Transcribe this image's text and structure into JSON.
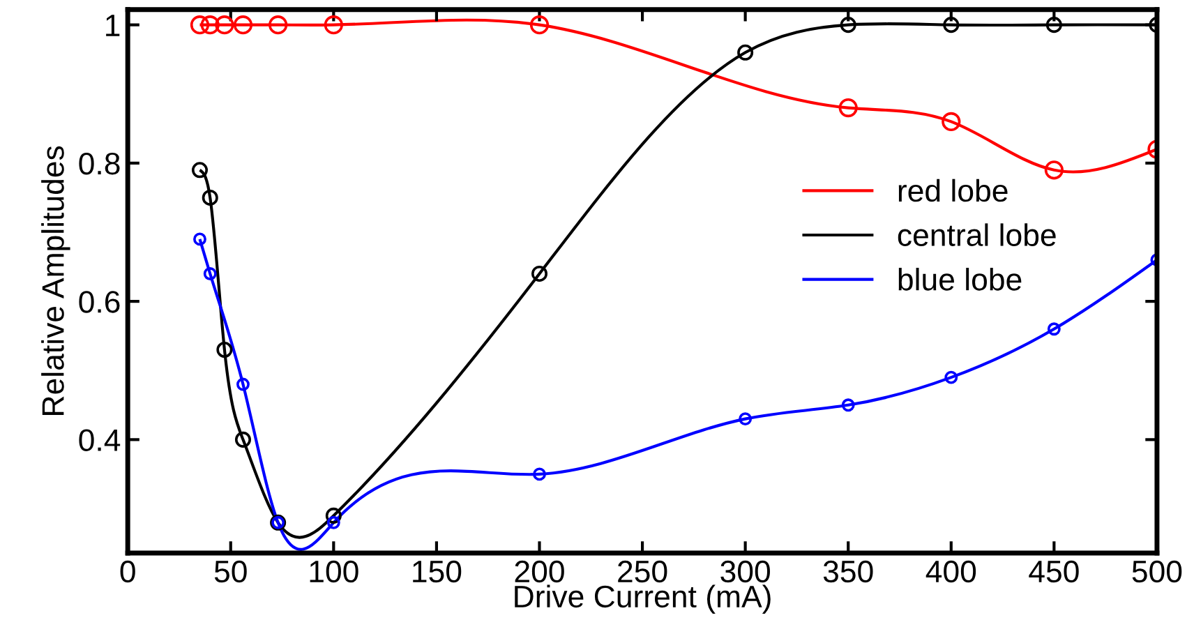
{
  "chart_data": {
    "type": "line",
    "xlabel": "Drive Current (mA)",
    "ylabel": "Relative Amplitudes",
    "xlim": [
      0,
      500
    ],
    "xticks": [
      0,
      50,
      100,
      150,
      200,
      250,
      300,
      350,
      400,
      450,
      500
    ],
    "ylim": [
      0.236,
      1.022
    ],
    "yticks": [
      0.4,
      0.6,
      0.8,
      1
    ],
    "marker": "circle",
    "line_style": "solid",
    "grid": false,
    "legend": "right",
    "series": [
      {
        "name": "red lobe",
        "color": "#ff0000",
        "x": [
          35,
          40,
          47,
          56,
          73,
          100,
          200,
          350,
          400,
          450,
          500
        ],
        "values": [
          1,
          1,
          1,
          1,
          1,
          1,
          1,
          0.88,
          0.86,
          0.79,
          0.82
        ]
      },
      {
        "name": "central lobe",
        "color": "#000000",
        "x": [
          35,
          40,
          47,
          56,
          73,
          100,
          200,
          300,
          350,
          400,
          450,
          500
        ],
        "values": [
          0.79,
          0.75,
          0.53,
          0.4,
          0.28,
          0.29,
          0.64,
          0.96,
          1,
          1,
          1,
          1
        ]
      },
      {
        "name": "blue lobe",
        "color": "#0000ff",
        "x": [
          35,
          40,
          56,
          73,
          100,
          200,
          300,
          350,
          400,
          450,
          500
        ],
        "values": [
          0.69,
          0.64,
          0.48,
          0.28,
          0.28,
          0.35,
          0.43,
          0.45,
          0.49,
          0.56,
          0.66
        ]
      }
    ]
  }
}
